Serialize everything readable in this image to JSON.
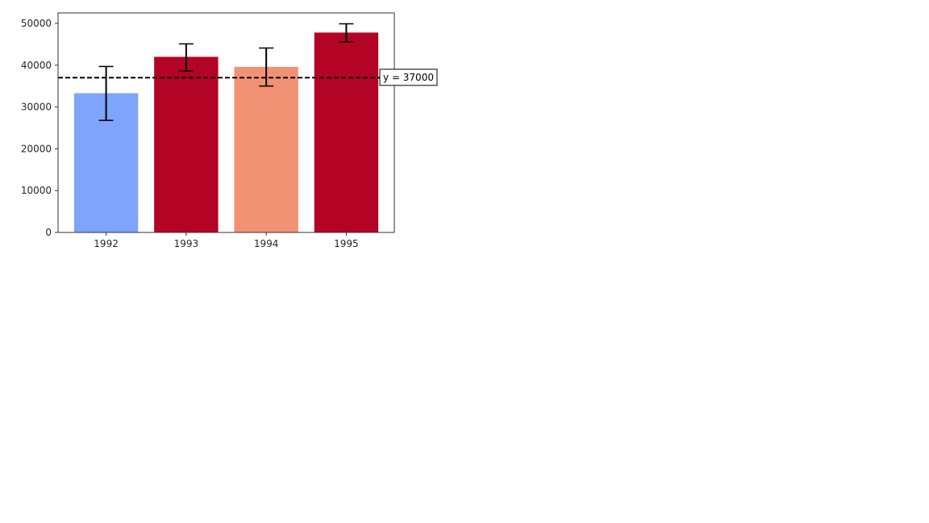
{
  "chart_data": {
    "type": "bar",
    "title": "",
    "xlabel": "",
    "ylabel": "",
    "categories": [
      "1992",
      "1993",
      "1994",
      "1995"
    ],
    "values": [
      33300,
      42000,
      39600,
      47800
    ],
    "error_low": [
      26800,
      38600,
      35000,
      45600
    ],
    "error_high": [
      39700,
      45100,
      44100,
      49900
    ],
    "bar_colors": [
      "#7ea4fb",
      "#b40426",
      "#f29274",
      "#b40426"
    ],
    "ylim": [
      0,
      52500
    ],
    "yticks": [
      0,
      10000,
      20000,
      30000,
      40000,
      50000
    ],
    "grid": false,
    "reference_line": {
      "y": 37000,
      "label": "y = 37000",
      "style": "dashed",
      "color": "#000000"
    }
  }
}
